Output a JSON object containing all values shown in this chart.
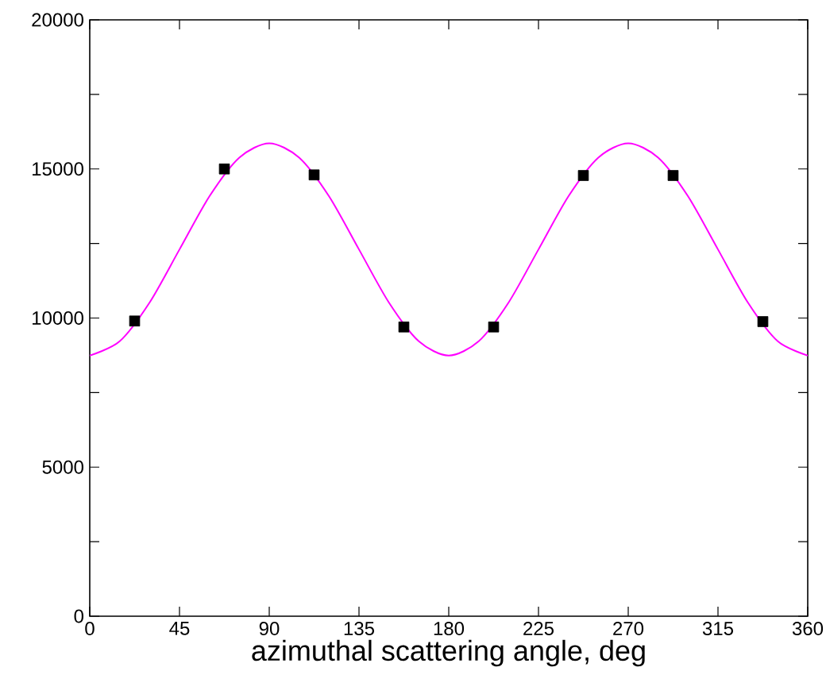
{
  "chart_data": {
    "type": "line",
    "xlabel": "azimuthal scattering angle, deg",
    "xlim": [
      0,
      360
    ],
    "ylim": [
      0,
      20000
    ],
    "xticks": [
      0,
      45,
      90,
      135,
      180,
      225,
      270,
      315,
      360
    ],
    "yticks": [
      0,
      {
        "value": 2500,
        "label": null
      },
      5000,
      {
        "value": 7500,
        "label": null
      },
      10000,
      {
        "value": 12500,
        "label": null
      },
      15000,
      {
        "value": 17500,
        "label": null
      },
      20000
    ],
    "series": [
      {
        "type": "line",
        "color": "#ff00ff",
        "marker": "none",
        "line_style": "solid",
        "x": [
          0,
          15,
          30,
          45,
          60,
          75,
          90,
          105,
          120,
          135,
          150,
          165,
          180,
          195,
          210,
          225,
          240,
          255,
          270,
          285,
          300,
          315,
          330,
          345,
          360
        ],
        "values": [
          8740,
          9220,
          10520,
          12300,
          14080,
          15380,
          15860,
          15380,
          14080,
          12300,
          10520,
          9220,
          8740,
          9220,
          10520,
          12300,
          14080,
          15380,
          15860,
          15380,
          14080,
          12300,
          10520,
          9220,
          8740
        ]
      },
      {
        "type": "scatter",
        "color": "#000000",
        "marker": "square",
        "x": [
          22.5,
          67.5,
          112.5,
          157.5,
          202.5,
          247.5,
          292.5,
          337.5
        ],
        "values": [
          9900,
          15000,
          14800,
          9700,
          9700,
          14780,
          14780,
          9880
        ]
      }
    ]
  }
}
